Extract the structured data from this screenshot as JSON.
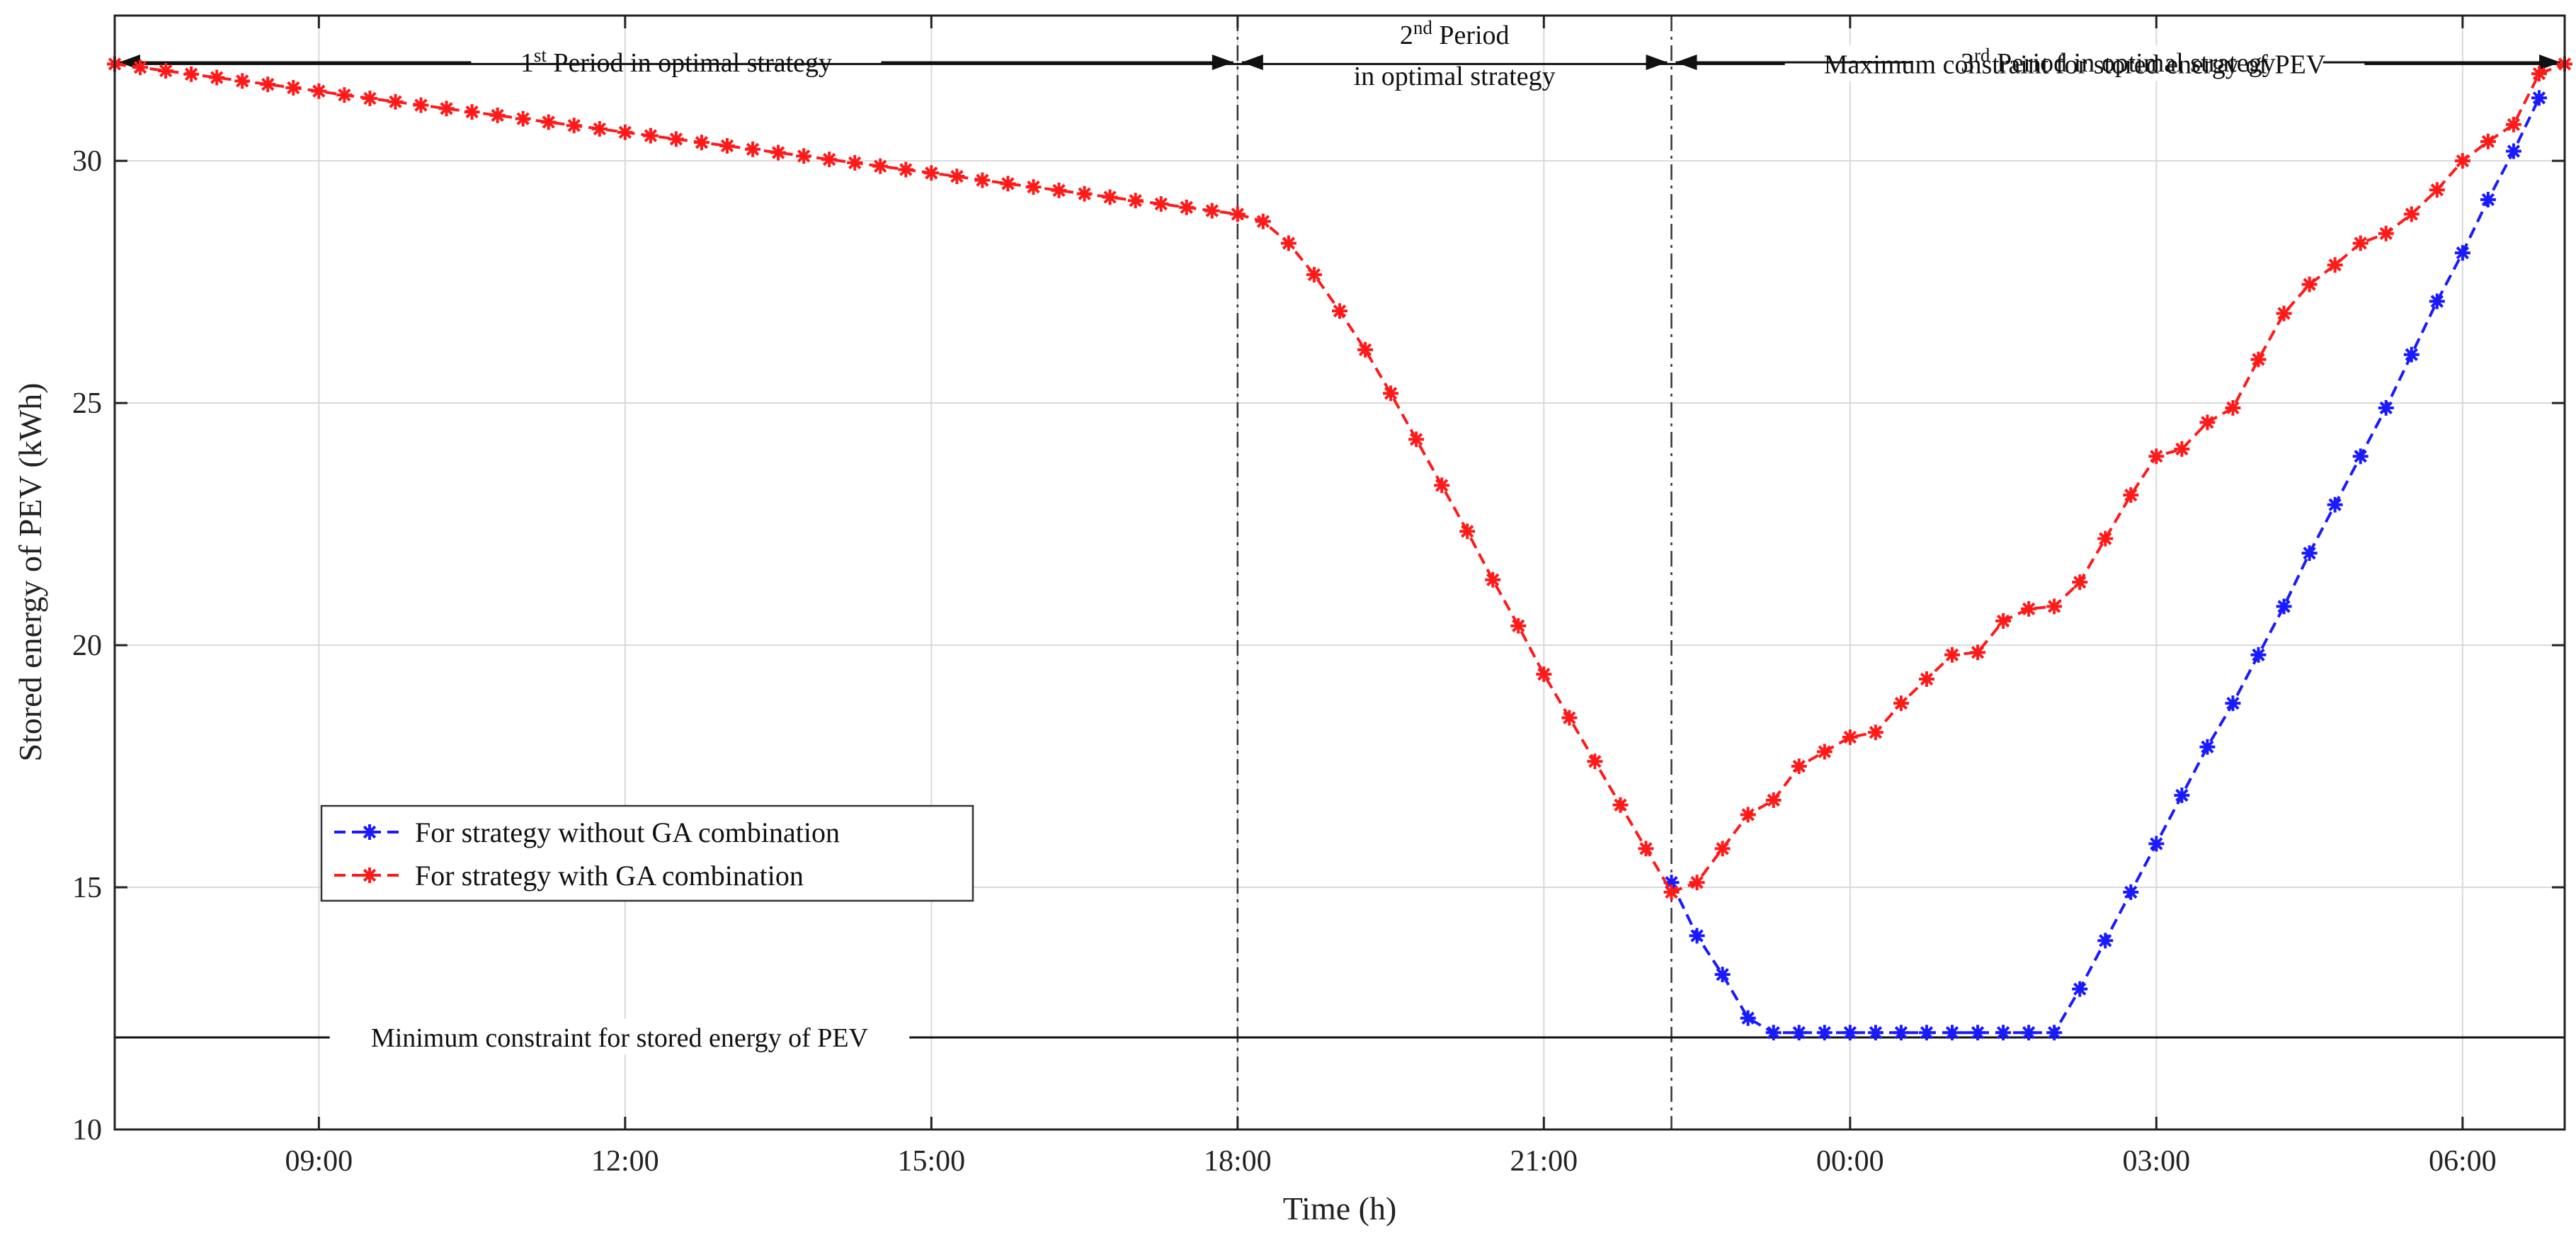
{
  "chart_data": {
    "type": "line",
    "title": "",
    "xlabel": "Time (h)",
    "ylabel": "Stored energy of PEV (kWh)",
    "x_unit": "hours since 07:00",
    "xlim": [
      0,
      24
    ],
    "ylim": [
      10,
      33
    ],
    "y_ticks": [
      10,
      15,
      20,
      25,
      30
    ],
    "x_ticks": [
      {
        "x": 2,
        "label": "09:00"
      },
      {
        "x": 5,
        "label": "12:00"
      },
      {
        "x": 8,
        "label": "15:00"
      },
      {
        "x": 11,
        "label": "18:00"
      },
      {
        "x": 14,
        "label": "21:00"
      },
      {
        "x": 17,
        "label": "00:00"
      },
      {
        "x": 20,
        "label": "03:00"
      },
      {
        "x": 23,
        "label": "06:00"
      }
    ],
    "grid": true,
    "legend_position": "middle-left",
    "series": [
      {
        "name": "For strategy without GA combination",
        "color": "#1a1aff",
        "style": "dashed",
        "marker": "asterisk",
        "x": [
          15.25,
          15.5,
          15.75,
          16,
          16.25,
          16.5,
          16.75,
          17,
          17.25,
          17.5,
          17.75,
          18,
          18.25,
          18.5,
          18.75,
          19,
          19.25,
          19.5,
          19.75,
          20,
          20.25,
          20.5,
          20.75,
          21,
          21.25,
          21.5,
          21.75,
          22,
          22.25,
          22.5,
          22.75,
          23,
          23.25,
          23.5,
          23.75
        ],
        "values": [
          15.1,
          14.0,
          13.2,
          12.3,
          12.0,
          12.0,
          12.0,
          12.0,
          12.0,
          12.0,
          12.0,
          12.0,
          12.0,
          12.0,
          12.0,
          12.0,
          12.9,
          13.9,
          14.9,
          15.9,
          16.9,
          17.9,
          18.8,
          19.8,
          20.8,
          21.9,
          22.9,
          23.9,
          24.9,
          26.0,
          27.1,
          28.1,
          29.2,
          30.2,
          31.3
        ]
      },
      {
        "name": "For strategy with GA combination",
        "color": "#ff1a1a",
        "style": "dashed",
        "marker": "asterisk",
        "x": [
          0,
          0.25,
          0.5,
          0.75,
          1,
          1.25,
          1.5,
          1.75,
          2,
          2.25,
          2.5,
          2.75,
          3,
          3.25,
          3.5,
          3.75,
          4,
          4.25,
          4.5,
          4.75,
          5,
          5.25,
          5.5,
          5.75,
          6,
          6.25,
          6.5,
          6.75,
          7,
          7.25,
          7.5,
          7.75,
          8,
          8.25,
          8.5,
          8.75,
          9,
          9.25,
          9.5,
          9.75,
          10,
          10.25,
          10.5,
          10.75,
          11,
          11.25,
          11.5,
          11.75,
          12,
          12.25,
          12.5,
          12.75,
          13,
          13.25,
          13.5,
          13.75,
          14,
          14.25,
          14.5,
          14.75,
          15,
          15.25,
          15.5,
          15.75,
          16,
          16.25,
          16.5,
          16.75,
          17,
          17.25,
          17.5,
          17.75,
          18,
          18.25,
          18.5,
          18.75,
          19,
          19.25,
          19.5,
          19.75,
          20,
          20.25,
          20.5,
          20.75,
          21,
          21.25,
          21.5,
          21.75,
          22,
          22.25,
          22.5,
          22.75,
          23,
          23.25,
          23.5,
          23.75,
          24
        ],
        "values": [
          32.0,
          31.93,
          31.86,
          31.79,
          31.72,
          31.65,
          31.58,
          31.51,
          31.44,
          31.36,
          31.29,
          31.22,
          31.15,
          31.08,
          31.01,
          30.94,
          30.87,
          30.8,
          30.73,
          30.66,
          30.59,
          30.52,
          30.45,
          30.38,
          30.31,
          30.24,
          30.17,
          30.1,
          30.03,
          29.96,
          29.89,
          29.82,
          29.75,
          29.68,
          29.6,
          29.53,
          29.46,
          29.39,
          29.32,
          29.25,
          29.18,
          29.11,
          29.04,
          28.97,
          28.9,
          28.75,
          28.3,
          27.65,
          26.9,
          26.1,
          25.2,
          24.25,
          23.3,
          22.35,
          21.35,
          20.4,
          19.4,
          18.5,
          17.6,
          16.7,
          15.8,
          14.9,
          15.1,
          15.8,
          16.5,
          16.8,
          17.5,
          17.8,
          18.1,
          18.2,
          18.8,
          19.3,
          19.8,
          19.85,
          20.5,
          20.75,
          20.8,
          21.3,
          22.2,
          23.1,
          23.9,
          24.05,
          24.6,
          24.9,
          25.9,
          26.85,
          27.45,
          27.85,
          28.3,
          28.5,
          28.9,
          29.4,
          30.0,
          30.4,
          30.75,
          31.8,
          32.0
        ]
      }
    ],
    "reference_lines": [
      {
        "name": "max",
        "y": 32.0,
        "label": "Maximum constraint for stored energy of PEV"
      },
      {
        "name": "min",
        "y": 11.9,
        "label": "Minimum constraint for stored energy of PEV"
      }
    ],
    "period_dividers": [
      11,
      15.25
    ],
    "periods": [
      {
        "x_start": 0,
        "x_end": 11,
        "sup": "st",
        "label_main": "1",
        "label_rest": " Period in optimal strategy",
        "label_line2": ""
      },
      {
        "x_start": 11,
        "x_end": 15.25,
        "sup": "nd",
        "label_main": "2",
        "label_rest": " Period",
        "label_line2": "in optimal strategy"
      },
      {
        "x_start": 15.25,
        "x_end": 24,
        "sup": "rd",
        "label_main": "3",
        "label_rest": " Period in optimal strategy",
        "label_line2": ""
      }
    ]
  }
}
